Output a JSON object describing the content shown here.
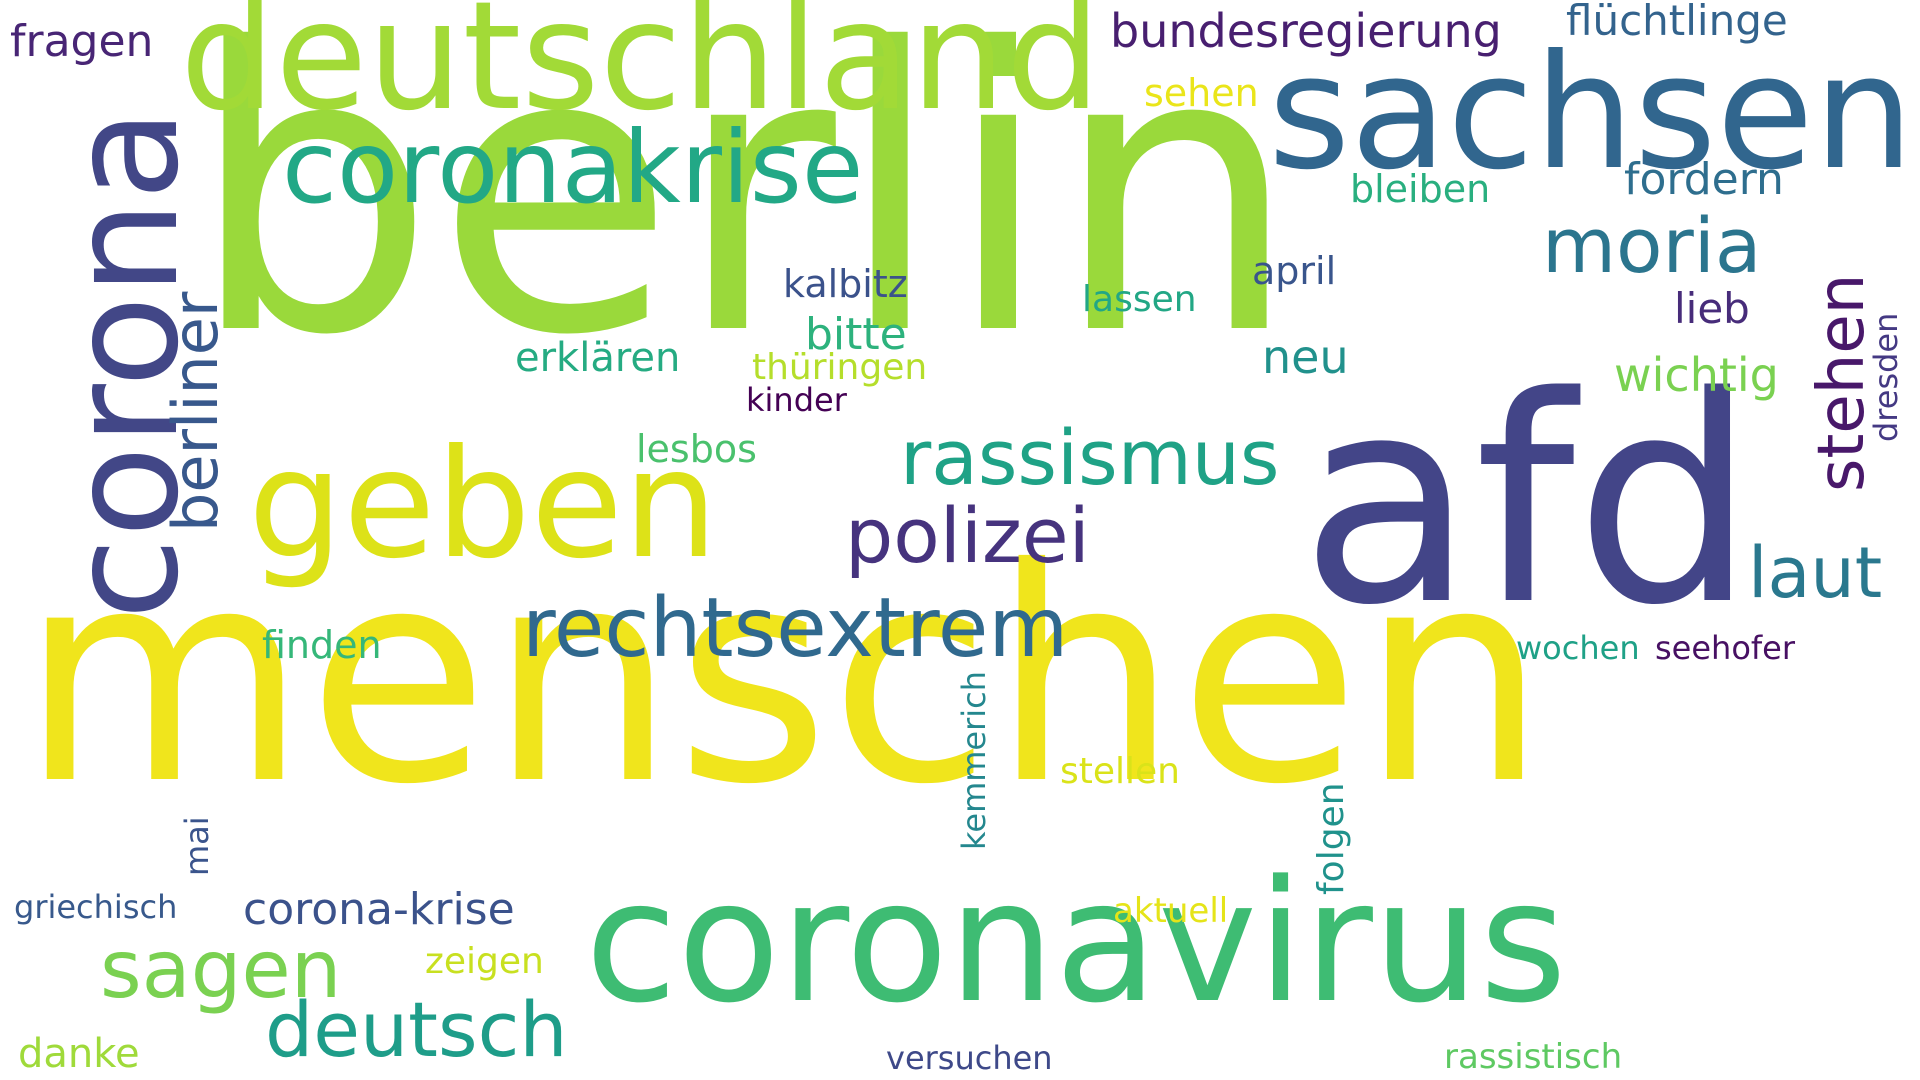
{
  "word_cloud": {
    "words": [
      {
        "text": "berlin",
        "color": "#9ad93b"
      },
      {
        "text": "menschen",
        "color": "#f0e51c"
      },
      {
        "text": "afd",
        "color": "#434588"
      },
      {
        "text": "coronavirus",
        "color": "#3ebc73"
      },
      {
        "text": "sachsen",
        "color": "#31668e"
      },
      {
        "text": "deutschland",
        "color": "#a2da37"
      },
      {
        "text": "corona",
        "color": "#424787"
      },
      {
        "text": "geben",
        "color": "#dde218"
      },
      {
        "text": "coronakrise",
        "color": "#22a886"
      },
      {
        "text": "rechtsextrem",
        "color": "#30698e"
      },
      {
        "text": "rassismus",
        "color": "#1fa286"
      },
      {
        "text": "polizei",
        "color": "#46337e"
      },
      {
        "text": "moria",
        "color": "#2b758e"
      },
      {
        "text": "stehen",
        "color": "#48186a"
      },
      {
        "text": "berliner",
        "color": "#38588c"
      },
      {
        "text": "sagen",
        "color": "#7ad151"
      },
      {
        "text": "deutsch",
        "color": "#1e9d89"
      },
      {
        "text": "laut",
        "color": "#2a788e"
      },
      {
        "text": "bundesregierung",
        "color": "#481f70"
      },
      {
        "text": "flüchtlinge",
        "color": "#33638d"
      },
      {
        "text": "fragen",
        "color": "#482575"
      },
      {
        "text": "fordern",
        "color": "#2e6e8e"
      },
      {
        "text": "sehen",
        "color": "#eae51a"
      },
      {
        "text": "bleiben",
        "color": "#29af7f"
      },
      {
        "text": "kalbitz",
        "color": "#3b528b"
      },
      {
        "text": "april",
        "color": "#39558c"
      },
      {
        "text": "lassen",
        "color": "#22a785"
      },
      {
        "text": "lieb",
        "color": "#472c7a"
      },
      {
        "text": "bitte",
        "color": "#2db27d"
      },
      {
        "text": "neu",
        "color": "#21918c"
      },
      {
        "text": "erklären",
        "color": "#25ab82"
      },
      {
        "text": "thüringen",
        "color": "#b5de2b"
      },
      {
        "text": "kinder",
        "color": "#440154"
      },
      {
        "text": "wichtig",
        "color": "#7ad151"
      },
      {
        "text": "dresden",
        "color": "#443983"
      },
      {
        "text": "lesbos",
        "color": "#4ac16d"
      },
      {
        "text": "finden",
        "color": "#35b779"
      },
      {
        "text": "wochen",
        "color": "#1fa187"
      },
      {
        "text": "seehofer",
        "color": "#471063"
      },
      {
        "text": "kemmerich",
        "color": "#24878e"
      },
      {
        "text": "stellen",
        "color": "#dae319"
      },
      {
        "text": "mai",
        "color": "#3a548c"
      },
      {
        "text": "folgen",
        "color": "#20928c"
      },
      {
        "text": "griechisch",
        "color": "#38598c"
      },
      {
        "text": "corona-krise",
        "color": "#3b528b"
      },
      {
        "text": "aktuell",
        "color": "#e5e419"
      },
      {
        "text": "zeigen",
        "color": "#c8e020"
      },
      {
        "text": "danke",
        "color": "#9fda3a"
      },
      {
        "text": "versuchen",
        "color": "#3e4989"
      },
      {
        "text": "rassistisch",
        "color": "#5ec962"
      }
    ]
  }
}
